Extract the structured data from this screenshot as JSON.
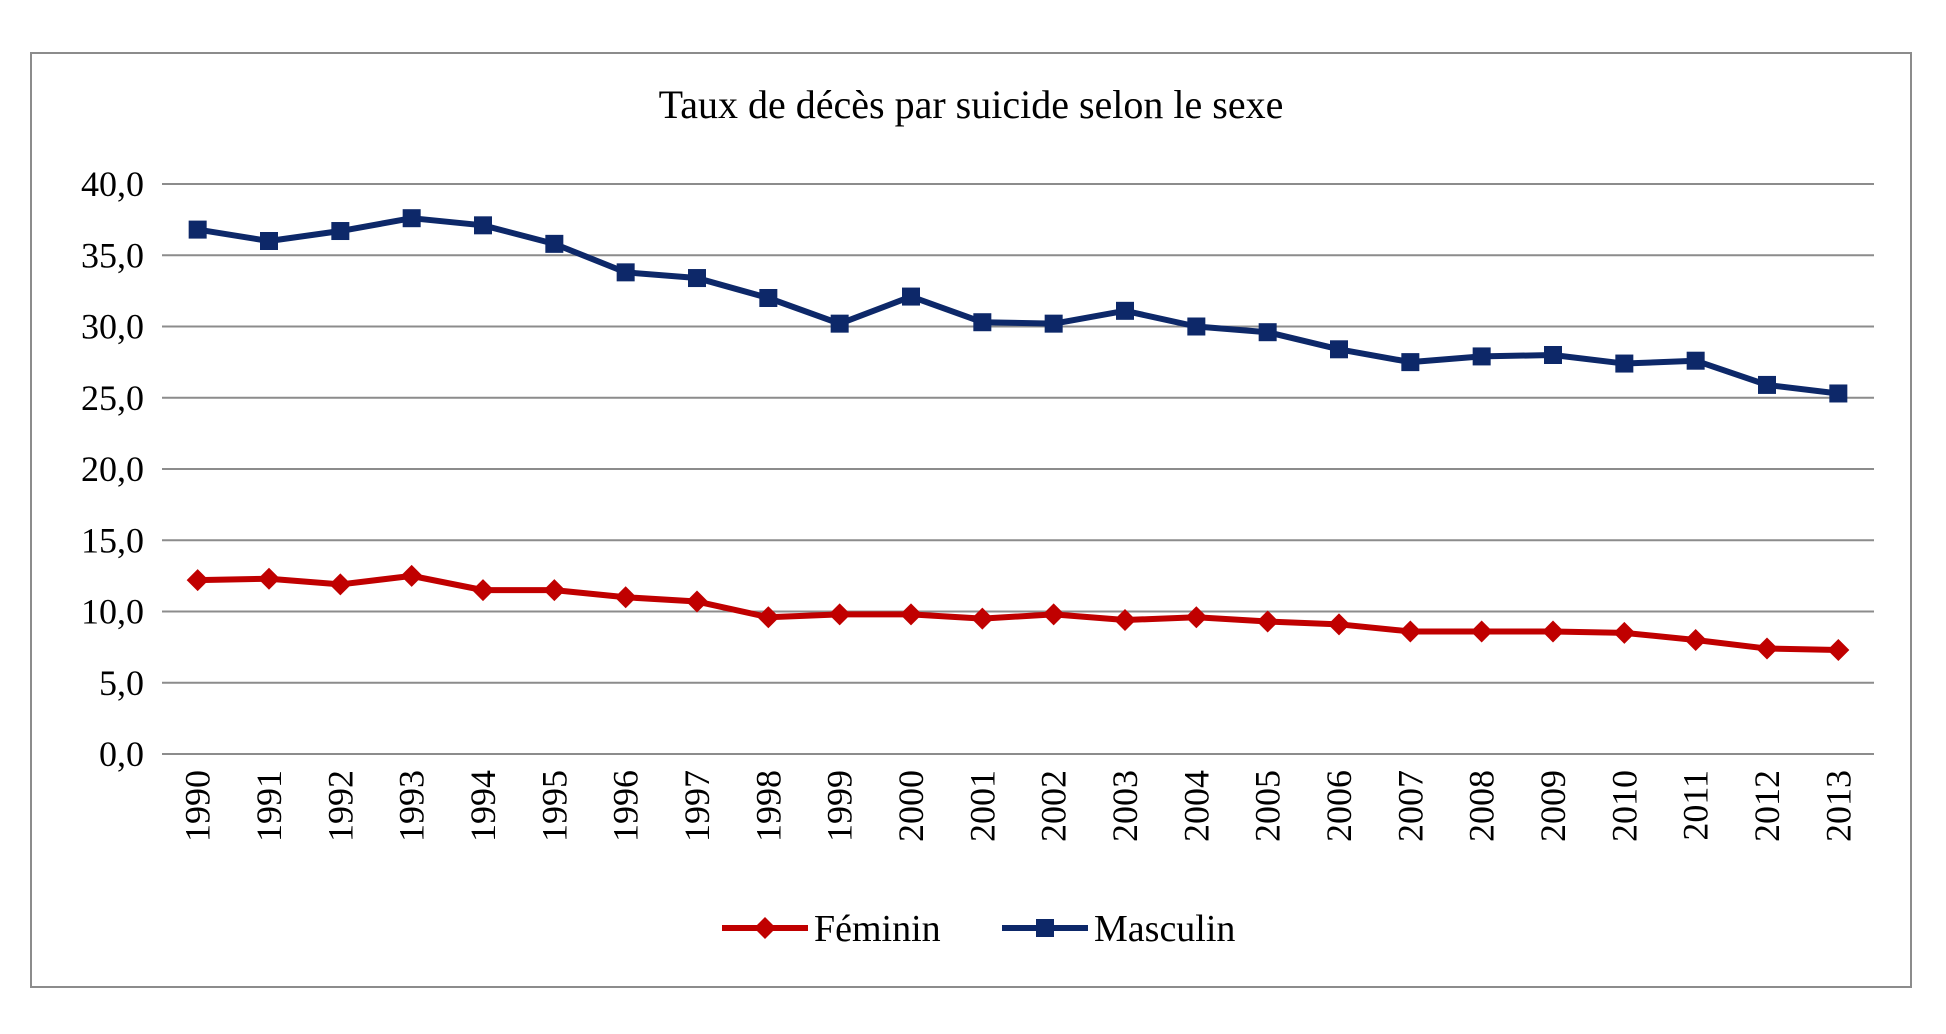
{
  "chart_data": {
    "type": "line",
    "title": "Taux de décès par suicide selon le sexe",
    "xlabel": "",
    "ylabel": "",
    "ylim": [
      0,
      40
    ],
    "y_ticks": [
      "0,0",
      "5,0",
      "10,0",
      "15,0",
      "20,0",
      "25,0",
      "30,0",
      "35,0",
      "40,0"
    ],
    "grid": true,
    "legend_position": "bottom",
    "x": [
      "1990",
      "1991",
      "1992",
      "1993",
      "1994",
      "1995",
      "1996",
      "1997",
      "1998",
      "1999",
      "2000",
      "2001",
      "2002",
      "2003",
      "2004",
      "2005",
      "2006",
      "2007",
      "2008",
      "2009",
      "2010",
      "2011",
      "2012",
      "2013"
    ],
    "series": [
      {
        "name": "Féminin",
        "color": "#c00000",
        "marker": "diamond",
        "values": [
          12.2,
          12.3,
          11.9,
          12.5,
          11.5,
          11.5,
          11.0,
          10.7,
          9.6,
          9.8,
          9.8,
          9.5,
          9.8,
          9.4,
          9.6,
          9.3,
          9.1,
          8.6,
          8.6,
          8.6,
          8.5,
          8.0,
          7.4,
          7.3
        ]
      },
      {
        "name": "Masculin",
        "color": "#0d2869",
        "marker": "square",
        "values": [
          36.8,
          36.0,
          36.7,
          37.6,
          37.1,
          35.8,
          33.8,
          33.4,
          32.0,
          30.2,
          32.1,
          30.3,
          30.2,
          31.1,
          30.0,
          29.6,
          28.4,
          27.5,
          27.9,
          28.0,
          27.4,
          27.6,
          25.9,
          25.3
        ]
      }
    ]
  }
}
